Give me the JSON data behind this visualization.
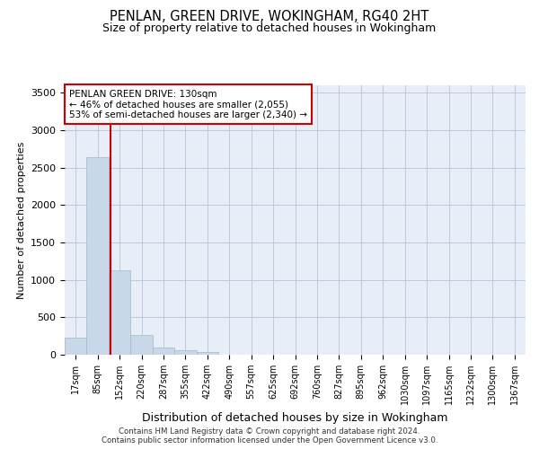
{
  "title1": "PENLAN, GREEN DRIVE, WOKINGHAM, RG40 2HT",
  "title2": "Size of property relative to detached houses in Wokingham",
  "xlabel": "Distribution of detached houses by size in Wokingham",
  "ylabel": "Number of detached properties",
  "categories": [
    "17sqm",
    "85sqm",
    "152sqm",
    "220sqm",
    "287sqm",
    "355sqm",
    "422sqm",
    "490sqm",
    "557sqm",
    "625sqm",
    "692sqm",
    "760sqm",
    "827sqm",
    "895sqm",
    "962sqm",
    "1030sqm",
    "1097sqm",
    "1165sqm",
    "1232sqm",
    "1300sqm",
    "1367sqm"
  ],
  "values": [
    230,
    2640,
    1130,
    270,
    100,
    55,
    35,
    0,
    0,
    0,
    0,
    0,
    0,
    0,
    0,
    0,
    0,
    0,
    0,
    0,
    0
  ],
  "bar_color": "#c8d8e8",
  "bar_edge_color": "#a0b8cc",
  "vline_x": 1.6,
  "vline_color": "#cc0000",
  "annotation_text": "PENLAN GREEN DRIVE: 130sqm\n← 46% of detached houses are smaller (2,055)\n53% of semi-detached houses are larger (2,340) →",
  "annotation_box_color": "white",
  "annotation_box_edge": "#cc0000",
  "ylim": [
    0,
    3600
  ],
  "yticks": [
    0,
    500,
    1000,
    1500,
    2000,
    2500,
    3000,
    3500
  ],
  "grid_color": "#c0c8d8",
  "bg_color": "#e8eef8",
  "footer1": "Contains HM Land Registry data © Crown copyright and database right 2024.",
  "footer2": "Contains public sector information licensed under the Open Government Licence v3.0."
}
